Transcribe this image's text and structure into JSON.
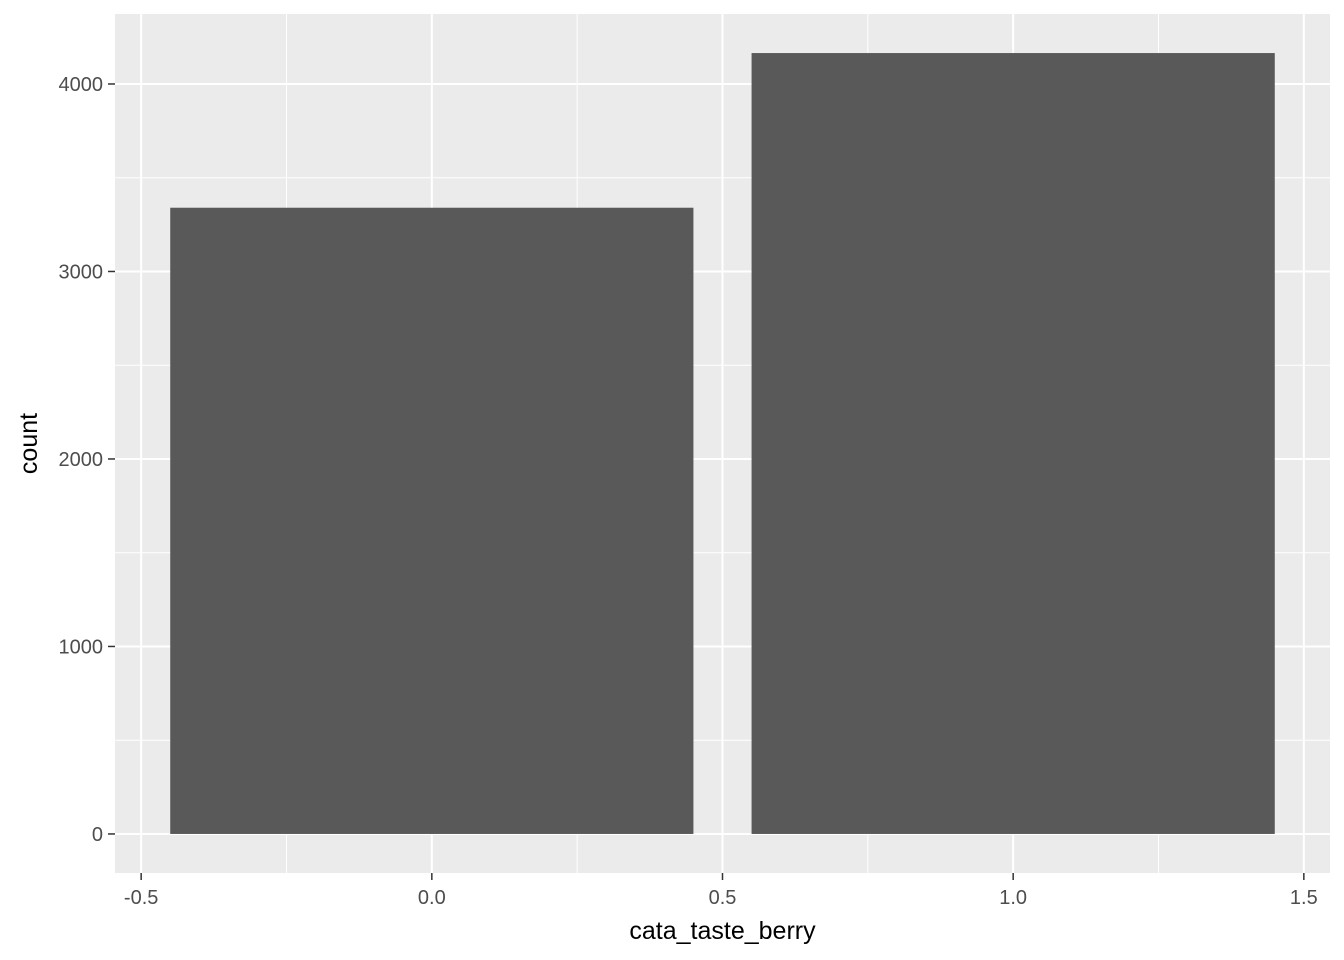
{
  "chart_data": {
    "type": "bar",
    "title": "",
    "xlabel": "cata_taste_berry",
    "ylabel": "count",
    "bars": [
      {
        "x": 0,
        "value": 3340
      },
      {
        "x": 1,
        "value": 4165
      }
    ],
    "bar_width": 0.9,
    "xlim": [
      -0.545,
      1.545
    ],
    "ylim": [
      -208.25,
      4373.25
    ],
    "x_ticks": [
      -0.5,
      0.0,
      0.5,
      1.0,
      1.5
    ],
    "x_tick_labels": [
      "-0.5",
      "0.0",
      "0.5",
      "1.0",
      "1.5"
    ],
    "y_ticks": [
      0,
      1000,
      2000,
      3000,
      4000
    ],
    "y_tick_labels": [
      "0",
      "1000",
      "2000",
      "3000",
      "4000"
    ],
    "grid": true,
    "legend": "none",
    "colors": {
      "panel_background": "#EBEBEB",
      "grid_line": "#FFFFFF",
      "bar_fill": "#595959",
      "tick_mark": "#333333"
    }
  }
}
